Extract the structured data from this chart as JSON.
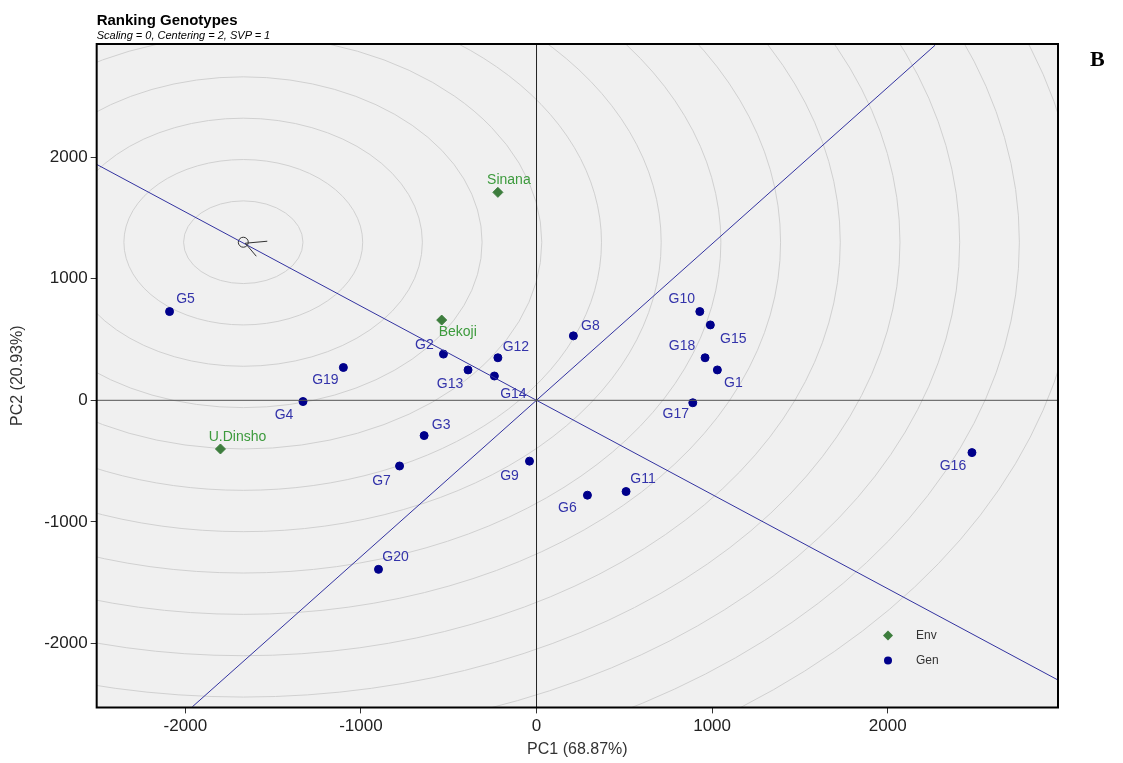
{
  "chart_data": {
    "type": "scatter",
    "title": "Ranking Genotypes",
    "subtitle": "Scaling = 0, Centering = 2, SVP = 1",
    "xlabel": "PC1 (68.87%)",
    "ylabel": "PC2 (20.93%)",
    "xlim": [
      -2505,
      2970
    ],
    "ylim": [
      -2525,
      2930
    ],
    "xticks": [
      -2000,
      -1000,
      0,
      1000,
      2000
    ],
    "yticks": [
      -2000,
      -1000,
      0,
      1000,
      2000
    ],
    "grid": false,
    "legend": "bottom right",
    "ref_lines": [
      {
        "axis": "x",
        "value": 0,
        "color": "#222222"
      },
      {
        "axis": "y",
        "value": 0,
        "color": "#555555"
      }
    ],
    "series": [
      {
        "type": "line",
        "color": "#3333a0",
        "marker": "none",
        "x": [
          -2505,
          2970
        ],
        "values": [
          1940,
          -2300
        ]
      },
      {
        "type": "line",
        "color": "#3333a0",
        "marker": "none",
        "x": [
          -1960,
          2270
        ],
        "values": [
          -2520,
          2920
        ]
      },
      {
        "color": "#333333",
        "marker": "circle",
        "x": [
          -1670
        ],
        "values": [
          1300
        ]
      },
      {
        "name": "Env",
        "color": "#3d7d3d",
        "marker": "diamond",
        "x": [
          -220,
          -540,
          -1800
        ],
        "values": [
          1710,
          660,
          -400
        ]
      },
      {
        "name": "Gen",
        "color": "#00008b",
        "marker": "circle",
        "x": [
          1030,
          -530,
          -640,
          -1330,
          -2090,
          290,
          -780,
          210,
          -40,
          930,
          510,
          -220,
          -390,
          -240,
          990,
          2480,
          890,
          960,
          -1100,
          -900
        ],
        "values": [
          250,
          380,
          -290,
          -10,
          730,
          -780,
          -540,
          530,
          -500,
          730,
          -750,
          350,
          250,
          200,
          620,
          -430,
          -20,
          350,
          270,
          -1390
        ]
      }
    ],
    "annotations": [
      "B",
      {
        "text": "Sinana",
        "x": -220,
        "y": 1710
      },
      {
        "text": "Bekoji",
        "x": -540,
        "y": 660
      },
      {
        "text": "U.Dinsho",
        "x": -1800,
        "y": -400
      },
      {
        "text": "G1",
        "x": 1030,
        "y": 250
      },
      {
        "text": "G2",
        "x": -530,
        "y": 380
      },
      {
        "text": "G3",
        "x": -640,
        "y": -290
      },
      {
        "text": "G4",
        "x": -1330,
        "y": -10
      },
      {
        "text": "G5",
        "x": -2090,
        "y": 730
      },
      {
        "text": "G6",
        "x": 290,
        "y": -780
      },
      {
        "text": "G7",
        "x": -780,
        "y": -540
      },
      {
        "text": "G8",
        "x": 210,
        "y": 530
      },
      {
        "text": "G9",
        "x": -40,
        "y": -500
      },
      {
        "text": "G10",
        "x": 930,
        "y": 730
      },
      {
        "text": "G11",
        "x": 510,
        "y": -750
      },
      {
        "text": "G12",
        "x": -220,
        "y": 350
      },
      {
        "text": "G13",
        "x": -390,
        "y": 250
      },
      {
        "text": "G14",
        "x": -240,
        "y": 200
      },
      {
        "text": "G15",
        "x": 990,
        "y": 620
      },
      {
        "text": "G16",
        "x": 2480,
        "y": -430
      },
      {
        "text": "G17",
        "x": 890,
        "y": -20
      },
      {
        "text": "G18",
        "x": 960,
        "y": 350
      },
      {
        "text": "G19",
        "x": -1100,
        "y": 270
      },
      {
        "text": "G20",
        "x": -900,
        "y": -1390
      }
    ]
  }
}
